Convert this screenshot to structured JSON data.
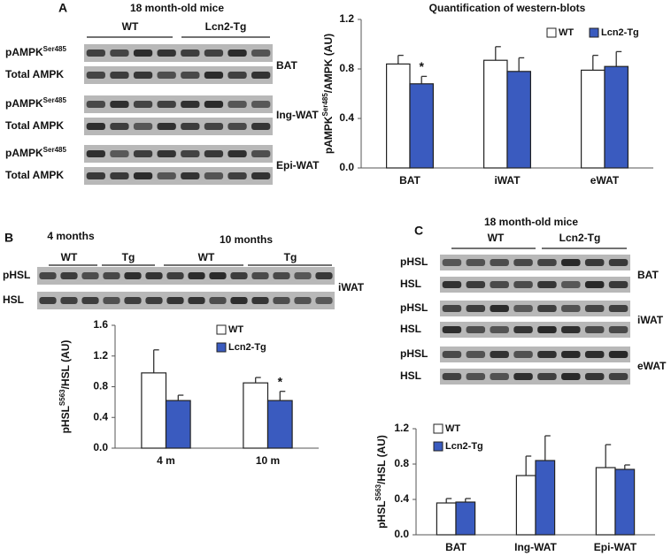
{
  "panels": {
    "a": {
      "letter": "A",
      "header": "18 month-old mice",
      "groups": [
        "WT",
        "Lcn2-Tg"
      ],
      "rows": [
        {
          "main": "pAMPK",
          "sup": "Ser485"
        },
        "Total AMPK",
        {
          "main": "pAMPK",
          "sup": "Ser485"
        },
        "Total AMPK",
        {
          "main": "pAMPK",
          "sup": "Ser485"
        },
        "Total AMPK"
      ],
      "tissues": [
        "BAT",
        "Ing-WAT",
        "Epi-WAT"
      ]
    },
    "b": {
      "letter": "B",
      "periods": [
        "4 months",
        "10 months"
      ],
      "groups": [
        "WT",
        "Tg",
        "WT",
        "Tg"
      ],
      "rows": [
        "pHSL",
        "HSL"
      ],
      "tissues": [
        "iWAT"
      ]
    },
    "c": {
      "letter": "C",
      "header": "18 month-old mice",
      "groups": [
        "WT",
        "Lcn2-Tg"
      ],
      "rows": [
        "pHSL",
        "HSL",
        "pHSL",
        "HSL",
        "pHSL",
        "HSL"
      ],
      "tissues": [
        "BAT",
        "iWAT",
        "eWAT"
      ]
    }
  },
  "chart_data": [
    {
      "type": "bar",
      "title": "Quantification of western-blots",
      "y_label": {
        "main": "pAMPK",
        "sup": "Ser485",
        "rest": "/AMPK (AU)"
      },
      "categories": [
        "BAT",
        "iWAT",
        "eWAT"
      ],
      "series": [
        {
          "name": "WT",
          "color": "#ffffff",
          "values": [
            0.84,
            0.87,
            0.79
          ],
          "errors": [
            0.07,
            0.11,
            0.12
          ]
        },
        {
          "name": "Lcn2-Tg",
          "color": "#3a5bbf",
          "values": [
            0.68,
            0.78,
            0.82
          ],
          "errors": [
            0.06,
            0.11,
            0.12
          ]
        }
      ],
      "ylim": [
        0,
        1.2
      ],
      "yticks": [
        {
          "value": 0,
          "label": "0.0"
        },
        0.4,
        0.8,
        1.2
      ],
      "annotations": [
        "*"
      ]
    },
    {
      "type": "bar",
      "y_label": {
        "main": "pHSL",
        "sup": "S563",
        "rest": "/HSL (AU)"
      },
      "categories": [
        "4 m",
        "10 m"
      ],
      "series": [
        {
          "name": "WT",
          "color": "#ffffff",
          "values": [
            0.98,
            0.85
          ],
          "errors": [
            0.3,
            0.07
          ]
        },
        {
          "name": "Lcn2-Tg",
          "color": "#3a5bbf",
          "values": [
            0.62,
            0.62
          ],
          "errors": [
            0.07,
            0.12
          ]
        }
      ],
      "ylim": [
        0,
        1.6
      ],
      "yticks": [
        {
          "value": 0,
          "label": "0.0"
        },
        0.4,
        0.8,
        1.2,
        1.6
      ],
      "annotations": [
        "*"
      ]
    },
    {
      "type": "bar",
      "y_label": {
        "main": "pHSL",
        "sup": "S563",
        "rest": "/HSL (AU)"
      },
      "categories": [
        "BAT",
        "Ing-WAT",
        "Epi-WAT"
      ],
      "series": [
        {
          "name": "WT",
          "color": "#ffffff",
          "values": [
            0.36,
            0.67,
            0.76
          ],
          "errors": [
            0.05,
            0.22,
            0.26
          ]
        },
        {
          "name": "Lcn2-Tg",
          "color": "#3a5bbf",
          "values": [
            0.37,
            0.84,
            0.74
          ],
          "errors": [
            0.04,
            0.28,
            0.05
          ]
        }
      ],
      "ylim": [
        0,
        1.2
      ],
      "yticks": [
        {
          "value": 0,
          "label": "0.0"
        },
        0.4,
        0.8,
        1.2
      ]
    }
  ]
}
